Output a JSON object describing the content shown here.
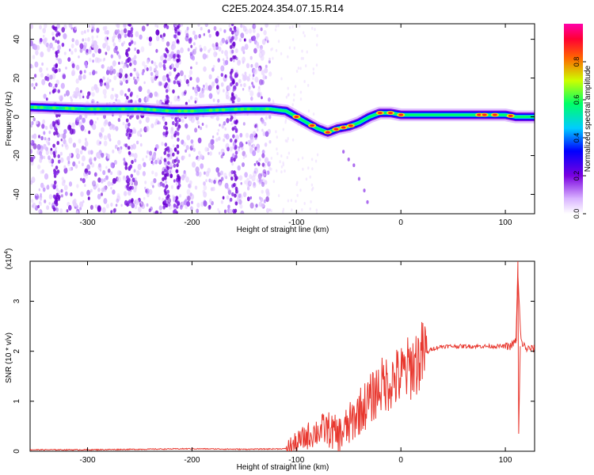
{
  "figure": {
    "title": "C2E5.2024.354.07.15.R14"
  },
  "chart_data": [
    {
      "type": "heatmap",
      "title": "C2E5.2024.354.07.15.R14",
      "xlabel": "Height of straight line (km)",
      "ylabel": "Frequency (Hz)",
      "xlim": [
        -355,
        128
      ],
      "ylim": [
        -50,
        48
      ],
      "x_ticks": [
        "-300",
        "-200",
        "-100",
        "0",
        "100"
      ],
      "y_ticks": [
        "40",
        "20",
        "0",
        "-20",
        "-40"
      ],
      "colorbar": {
        "label": "Normalized spectral amplitude",
        "range": [
          0,
          1
        ],
        "ticks": [
          "0.0",
          "0.2",
          "0.4",
          "0.6",
          "0.8"
        ],
        "colors": [
          "#ffffff",
          "#d9b3ff",
          "#7a00e0",
          "#0000ff",
          "#00ccff",
          "#00ff66",
          "#ccff00",
          "#ff6600",
          "#ff0033",
          "#ff00aa"
        ]
      },
      "ridge": {
        "x": [
          -355,
          -300,
          -250,
          -220,
          -200,
          -150,
          -125,
          -110,
          -100,
          -90,
          -80,
          -70,
          -60,
          -50,
          -40,
          -30,
          -20,
          -10,
          0,
          20,
          50,
          80,
          100,
          110,
          128
        ],
        "y": [
          5,
          4,
          4,
          3,
          3,
          4,
          4,
          3,
          0,
          -3,
          -6,
          -8,
          -6,
          -5,
          -3,
          0,
          2,
          2,
          1,
          1,
          1,
          1,
          1,
          0,
          0
        ]
      },
      "noise_band": {
        "xmin": -355,
        "xmax": -125
      }
    },
    {
      "type": "line",
      "xlabel": "Height of straight line (km)",
      "ylabel": "SNR (10 * v/v)",
      "scale_note": "(x10",
      "scale_exp": "4",
      "xlim": [
        -355,
        128
      ],
      "ylim": [
        0,
        3.8
      ],
      "x_ticks": [
        "-300",
        "-200",
        "-100",
        "0",
        "100"
      ],
      "y_ticks": [
        "0",
        "1",
        "2",
        "3"
      ],
      "line_color": "#e8382f",
      "series": [
        {
          "x": [
            -355,
            -300,
            -250,
            -200,
            -150,
            -110,
            -100,
            -90,
            -80,
            -70,
            -60,
            -50,
            -40,
            -30,
            -20,
            -10,
            0,
            10,
            20,
            30,
            40,
            60,
            80,
            100,
            105,
            110,
            112,
            115,
            120,
            128
          ],
          "y": [
            0.03,
            0.03,
            0.04,
            0.05,
            0.04,
            0.05,
            0.15,
            0.3,
            0.4,
            0.45,
            0.3,
            0.5,
            0.8,
            1.0,
            1.3,
            1.4,
            1.5,
            1.7,
            1.9,
            2.05,
            2.1,
            2.1,
            2.1,
            2.1,
            2.1,
            2.2,
            3.5,
            2.2,
            2.05,
            2.05
          ]
        }
      ]
    }
  ]
}
